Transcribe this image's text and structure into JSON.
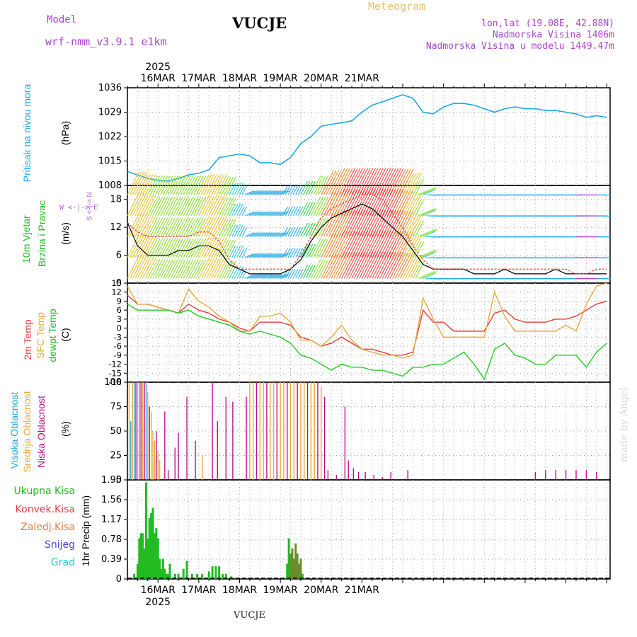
{
  "header": {
    "model_label": "Model",
    "model_name": "wrf-nmm_v3.9.1 e1km",
    "title": "VUCJE",
    "meteogram": "Meteogram",
    "coords": "lon,lat (19.08E, 42.88N)",
    "altitude": "Nadmorska Visina 1406m",
    "model_altitude": "Nadmorska Visina u modelu 1449.47m"
  },
  "colors": {
    "pressure": "#1ea8e8",
    "wind_label": "#22bb22",
    "wind_dir": "#bb55dd",
    "temp2m": "#e83c3c",
    "sfc": "#e8a83c",
    "dew": "#22cc22",
    "high_cloud": "#1ea8e8",
    "mid_cloud": "#e8a83c",
    "low_cloud": "#bb1188",
    "meteogram": "#e8c070",
    "info": "#aa44cc"
  },
  "axes": {
    "top_year": "2025",
    "bottom_year": "2025",
    "days": [
      "16MAR",
      "17MAR",
      "18MAR",
      "19MAR",
      "20MAR",
      "21MAR"
    ]
  },
  "labels": {
    "pressure": [
      "Pritisak na nivou mora",
      "(hPa)"
    ],
    "wind": [
      "10m Vjetar",
      "Brzina i Pravac",
      "(m/s)"
    ],
    "wind_dir": "W <-|-> E",
    "wind_dir2": "S <-|-> N",
    "temp": [
      "2m Temp",
      "SFC Temp",
      "dewpt Temp",
      "(C)"
    ],
    "cloud": [
      "Visoka Oblacnost",
      "Srednja Oblacnost",
      "Niska Oblacnost",
      "(%)"
    ],
    "precip_axis": "1hr Precip (mm)",
    "precip_legend": [
      "Ukupna Kisa",
      "Konvek.Kisa",
      "Zaledj.Kisa",
      "Snijeg",
      "Grad"
    ]
  },
  "footer": "VUCJE",
  "credit": "made by Angel",
  "chart_data": [
    {
      "type": "line",
      "name": "pressure",
      "ylabel": "(hPa)",
      "ylim": [
        1008,
        1036
      ],
      "yticks": [
        "1036",
        "1029",
        "1022",
        "1015",
        "1008"
      ],
      "x": [
        0,
        6,
        12,
        18,
        24,
        30,
        36,
        42,
        48,
        54,
        60,
        66,
        72,
        78,
        84,
        90,
        96,
        102,
        108,
        114,
        120,
        126,
        132,
        138,
        144,
        150,
        156,
        162,
        168,
        174,
        180,
        186,
        192,
        198,
        204,
        210,
        216,
        222,
        228,
        234,
        240,
        246,
        252,
        258,
        264,
        270,
        276,
        282
      ],
      "values": [
        1012,
        1011,
        1010,
        1009.5,
        1009.2,
        1010,
        1011,
        1011.5,
        1012.5,
        1016,
        1016.5,
        1017,
        1016.5,
        1014.5,
        1014.5,
        1014,
        1016,
        1020,
        1022,
        1025,
        1025.5,
        1026,
        1026.5,
        1029,
        1031,
        1032,
        1033,
        1034,
        1033,
        1029,
        1028.5,
        1030.5,
        1031.5,
        1031.5,
        1031,
        1030,
        1029,
        1030,
        1030.5,
        1030,
        1030,
        1029.5,
        1029.5,
        1029,
        1028.5,
        1027.5,
        1028,
        1027.5
      ]
    },
    {
      "type": "line",
      "name": "wind",
      "ylabel": "(m/s)",
      "ylim": [
        0,
        21
      ],
      "yticks": [
        "18",
        "12",
        "6",
        "0"
      ],
      "x": [
        0,
        6,
        12,
        18,
        24,
        30,
        36,
        42,
        48,
        54,
        60,
        66,
        72,
        78,
        84,
        90,
        96,
        102,
        108,
        114,
        120,
        126,
        132,
        138,
        144,
        150,
        156,
        162,
        168,
        174,
        180,
        186,
        192,
        198,
        204,
        210,
        216,
        222,
        228,
        234,
        240,
        246,
        252,
        258,
        264,
        270,
        276,
        282
      ],
      "series": [
        {
          "values": [
            13,
            8,
            6,
            6,
            6,
            7,
            7,
            8,
            8,
            7,
            4,
            3,
            2,
            2,
            2,
            2,
            3,
            5,
            9,
            12,
            14,
            15,
            16,
            17,
            16,
            14,
            12,
            10,
            7,
            4,
            3,
            3,
            3,
            3,
            2,
            2,
            2,
            3,
            2,
            2,
            2,
            2,
            3,
            2,
            2,
            2,
            2,
            2
          ]
        },
        {
          "values": [
            13,
            11,
            10,
            10,
            10,
            10,
            10,
            11,
            11,
            9,
            5,
            3,
            3,
            3,
            3,
            3,
            3,
            6,
            10,
            14,
            16,
            17,
            18,
            19,
            19,
            18,
            15,
            12,
            8,
            5,
            3,
            3,
            3,
            3,
            3,
            3,
            3,
            3,
            3,
            3,
            3,
            3,
            3,
            3,
            2,
            2,
            3,
            3
          ]
        }
      ]
    },
    {
      "type": "line",
      "name": "temperature",
      "ylabel": "(C)",
      "ylim": [
        -18,
        15
      ],
      "yticks": [
        "15",
        "12",
        "9",
        "6",
        "3",
        "0",
        "-3",
        "-6",
        "-9",
        "-12",
        "-15",
        "-18"
      ],
      "x": [
        0,
        6,
        12,
        18,
        24,
        30,
        36,
        42,
        48,
        54,
        60,
        66,
        72,
        78,
        84,
        90,
        96,
        102,
        108,
        114,
        120,
        126,
        132,
        138,
        144,
        150,
        156,
        162,
        168,
        174,
        180,
        186,
        192,
        198,
        204,
        210,
        216,
        222,
        228,
        234,
        240,
        246,
        252,
        258,
        264,
        270,
        276,
        282
      ],
      "series": [
        {
          "values": [
            11,
            8,
            8,
            7,
            6,
            5,
            8,
            6,
            5,
            3,
            2,
            0,
            -1,
            2,
            2,
            2,
            1,
            -3,
            -4,
            -6,
            -5,
            -3,
            -5,
            -7,
            -7,
            -8,
            -9,
            -9,
            -8,
            6,
            2,
            2,
            -1,
            -1,
            -1,
            -1,
            5,
            6,
            3,
            2,
            2,
            2,
            3,
            3,
            4,
            6,
            8,
            9
          ]
        },
        {
          "values": [
            14,
            8,
            8,
            7,
            6,
            5,
            13,
            9,
            7,
            4,
            2,
            -1,
            -1,
            4,
            4,
            5,
            2,
            -4,
            -4,
            -6,
            -3,
            1,
            -4,
            -7,
            -8,
            -9,
            -9,
            -10,
            -9,
            10,
            3,
            -3,
            -3,
            -3,
            -3,
            -3,
            12,
            4,
            -1,
            -1,
            -1,
            -1,
            -1,
            1,
            -1,
            8,
            14,
            15
          ]
        },
        {
          "values": [
            8,
            6,
            6,
            6,
            6,
            5,
            6,
            4,
            3,
            2,
            1,
            -1,
            -2,
            -1,
            -2,
            -3,
            -5,
            -9,
            -10,
            -12,
            -14,
            -12,
            -13,
            -13,
            -14,
            -14,
            -15,
            -16,
            -13,
            -13,
            -12,
            -12,
            -10,
            -8,
            -12,
            -17,
            -7,
            -5,
            -9,
            -10,
            -12,
            -12,
            -9,
            -9,
            -9,
            -13,
            -8,
            -5
          ]
        }
      ]
    },
    {
      "type": "bar",
      "name": "cloud",
      "ylabel": "(%)",
      "ylim": [
        0,
        100
      ],
      "yticks": [
        "100",
        "75",
        "50",
        "25",
        "0"
      ]
    },
    {
      "type": "bar",
      "name": "precipitation",
      "ylabel": "1hr Precip (mm)",
      "ylim": [
        0,
        1.95
      ],
      "yticks": [
        "1.95",
        "1.56",
        "1.17",
        "0.78",
        "0.39",
        "0"
      ],
      "x": [
        4,
        6,
        7,
        8,
        9,
        10,
        11,
        12,
        13,
        14,
        15,
        16,
        17,
        18,
        19,
        20,
        21,
        22,
        23,
        24,
        25,
        28,
        30,
        33,
        35,
        38,
        41,
        44,
        48,
        50,
        52,
        54,
        56,
        58,
        61,
        94,
        95,
        96,
        97,
        98,
        99,
        100,
        101,
        102,
        103,
        111,
        114
      ],
      "values": [
        0.1,
        0.3,
        0.8,
        0.9,
        0.9,
        0.6,
        1.9,
        0.8,
        1.2,
        1.3,
        1.4,
        0.9,
        1.0,
        0.8,
        0.4,
        0.2,
        0.4,
        0.2,
        0.1,
        0.1,
        0.3,
        0.1,
        0.1,
        0.2,
        0.35,
        0.1,
        0.1,
        0.1,
        0.15,
        0.25,
        0.25,
        0.25,
        0.1,
        0.1,
        0.05,
        0.3,
        0.8,
        0.5,
        0.6,
        0.4,
        0.7,
        0.5,
        0.3,
        0.4,
        0.1,
        0.02,
        0.02
      ]
    }
  ]
}
